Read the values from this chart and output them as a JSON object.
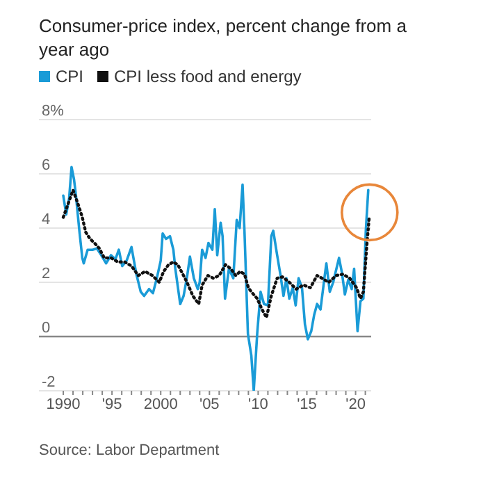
{
  "chart_data": {
    "type": "line",
    "title": "Consumer-price index, percent change from a year ago",
    "legend": "top left",
    "grid": "y",
    "xlim": [
      1987.5,
      2021.6
    ],
    "ylim": [
      -2,
      8
    ],
    "yticks": [
      -2,
      0,
      2,
      4,
      6,
      {
        "value": 8,
        "label": "8%"
      }
    ],
    "xticks": [
      {
        "value": 1990,
        "label": "1990"
      },
      {
        "value": 1991,
        "label": null
      },
      {
        "value": 1992,
        "label": null
      },
      {
        "value": 1993,
        "label": null
      },
      {
        "value": 1994,
        "label": null
      },
      {
        "value": 1995,
        "label": "'95"
      },
      {
        "value": 1996,
        "label": null
      },
      {
        "value": 1997,
        "label": null
      },
      {
        "value": 1998,
        "label": null
      },
      {
        "value": 1999,
        "label": null
      },
      {
        "value": 2000,
        "label": "2000"
      },
      {
        "value": 2001,
        "label": null
      },
      {
        "value": 2002,
        "label": null
      },
      {
        "value": 2003,
        "label": null
      },
      {
        "value": 2004,
        "label": null
      },
      {
        "value": 2005,
        "label": "'05"
      },
      {
        "value": 2006,
        "label": null
      },
      {
        "value": 2007,
        "label": null
      },
      {
        "value": 2008,
        "label": null
      },
      {
        "value": 2009,
        "label": null
      },
      {
        "value": 2010,
        "label": "'10"
      },
      {
        "value": 2011,
        "label": null
      },
      {
        "value": 2012,
        "label": null
      },
      {
        "value": 2013,
        "label": null
      },
      {
        "value": 2014,
        "label": null
      },
      {
        "value": 2015,
        "label": "'15"
      },
      {
        "value": 2016,
        "label": null
      },
      {
        "value": 2017,
        "label": null
      },
      {
        "value": 2018,
        "label": null
      },
      {
        "value": 2019,
        "label": null
      },
      {
        "value": 2020,
        "label": "'20"
      },
      {
        "value": 2021,
        "label": null
      }
    ],
    "ref_lines": [
      {
        "axis": "y",
        "value": 0,
        "color": "#888888"
      }
    ],
    "series": [
      {
        "name": "CPI",
        "color": "#1a9bd7",
        "line_style": "solid",
        "x": [
          1990.0,
          1990.3,
          1990.6,
          1990.85,
          1991.1,
          1991.3,
          1991.65,
          1991.95,
          1992.1,
          1992.5,
          1993.0,
          1993.45,
          1993.9,
          1994.4,
          1994.9,
          1995.35,
          1995.7,
          1996.05,
          1996.5,
          1997.0,
          1997.5,
          1997.95,
          1998.3,
          1998.8,
          1999.2,
          1999.6,
          2000.0,
          2000.2,
          2000.55,
          2000.95,
          2001.3,
          2001.5,
          2002.0,
          2002.35,
          2002.7,
          2003.0,
          2003.4,
          2003.8,
          2004.0,
          2004.25,
          2004.6,
          2004.9,
          2005.3,
          2005.55,
          2005.8,
          2006.15,
          2006.35,
          2006.6,
          2007.0,
          2007.45,
          2007.8,
          2008.1,
          2008.4,
          2008.6,
          2008.95,
          2009.3,
          2009.55,
          2009.9,
          2010.25,
          2010.6,
          2011.0,
          2011.35,
          2011.55,
          2011.95,
          2012.3,
          2012.6,
          2012.9,
          2013.2,
          2013.55,
          2013.85,
          2014.15,
          2014.5,
          2014.8,
          2015.1,
          2015.45,
          2015.75,
          2016.05,
          2016.4,
          2016.8,
          2017.0,
          2017.35,
          2017.7,
          2018.3,
          2018.6,
          2018.9,
          2019.25,
          2019.6,
          2019.85,
          2020.2,
          2020.5,
          2020.8,
          2021.05,
          2021.3
        ],
        "values": [
          5.2,
          4.5,
          5.1,
          6.25,
          5.8,
          5.2,
          3.9,
          2.9,
          2.7,
          3.2,
          3.2,
          3.25,
          3.0,
          2.7,
          3.0,
          2.85,
          3.2,
          2.6,
          2.8,
          3.3,
          2.3,
          1.65,
          1.5,
          1.75,
          1.6,
          2.15,
          2.8,
          3.8,
          3.6,
          3.7,
          3.2,
          2.5,
          1.2,
          1.5,
          2.2,
          2.95,
          2.15,
          1.75,
          2.0,
          3.2,
          2.9,
          3.45,
          3.2,
          4.7,
          3.0,
          4.2,
          3.7,
          1.4,
          2.5,
          2.15,
          4.3,
          4.0,
          5.6,
          3.85,
          0.1,
          -0.7,
          -2.0,
          0.1,
          1.65,
          1.2,
          1.15,
          3.7,
          3.9,
          3.0,
          2.25,
          1.5,
          2.15,
          1.4,
          1.8,
          1.15,
          2.15,
          1.8,
          0.45,
          -0.1,
          0.2,
          0.8,
          1.2,
          1.0,
          2.15,
          2.7,
          1.65,
          2.0,
          2.9,
          2.35,
          1.55,
          2.1,
          1.75,
          2.5,
          0.2,
          1.3,
          1.4,
          3.9,
          5.4
        ]
      },
      {
        "name": "CPI less food and energy",
        "color": "#111111",
        "line_style": "dotted",
        "x": [
          1990.0,
          1990.6,
          1991.0,
          1991.5,
          1991.95,
          1992.3,
          1992.75,
          1993.2,
          1993.7,
          1994.2,
          1994.9,
          1995.6,
          1996.3,
          1997.0,
          1997.7,
          1998.4,
          1999.15,
          1999.85,
          2000.3,
          2000.8,
          2001.3,
          2001.75,
          2002.2,
          2002.7,
          2003.3,
          2003.9,
          2004.25,
          2004.85,
          2005.4,
          2006.0,
          2006.65,
          2007.2,
          2007.7,
          2008.15,
          2008.6,
          2009.0,
          2009.3,
          2009.9,
          2010.4,
          2010.85,
          2011.35,
          2011.95,
          2012.5,
          2013.2,
          2013.9,
          2014.65,
          2015.35,
          2016.05,
          2016.55,
          2017.25,
          2018.0,
          2018.7,
          2019.4,
          2020.1,
          2020.5,
          2020.8,
          2021.15,
          2021.4
        ],
        "values": [
          4.4,
          5.0,
          5.4,
          4.9,
          4.4,
          3.85,
          3.6,
          3.45,
          3.25,
          2.9,
          2.9,
          2.75,
          2.75,
          2.6,
          2.25,
          2.4,
          2.25,
          2.0,
          2.4,
          2.65,
          2.75,
          2.65,
          2.35,
          2.0,
          1.5,
          1.2,
          1.9,
          2.25,
          2.15,
          2.25,
          2.65,
          2.5,
          2.25,
          2.4,
          2.3,
          1.8,
          1.65,
          1.4,
          1.0,
          0.7,
          1.5,
          2.15,
          2.2,
          2.0,
          1.75,
          1.9,
          1.8,
          2.25,
          2.15,
          2.0,
          2.25,
          2.3,
          2.15,
          1.8,
          1.4,
          1.65,
          3.35,
          4.4
        ]
      }
    ],
    "annotations": [
      "Source: Labor Department"
    ]
  }
}
